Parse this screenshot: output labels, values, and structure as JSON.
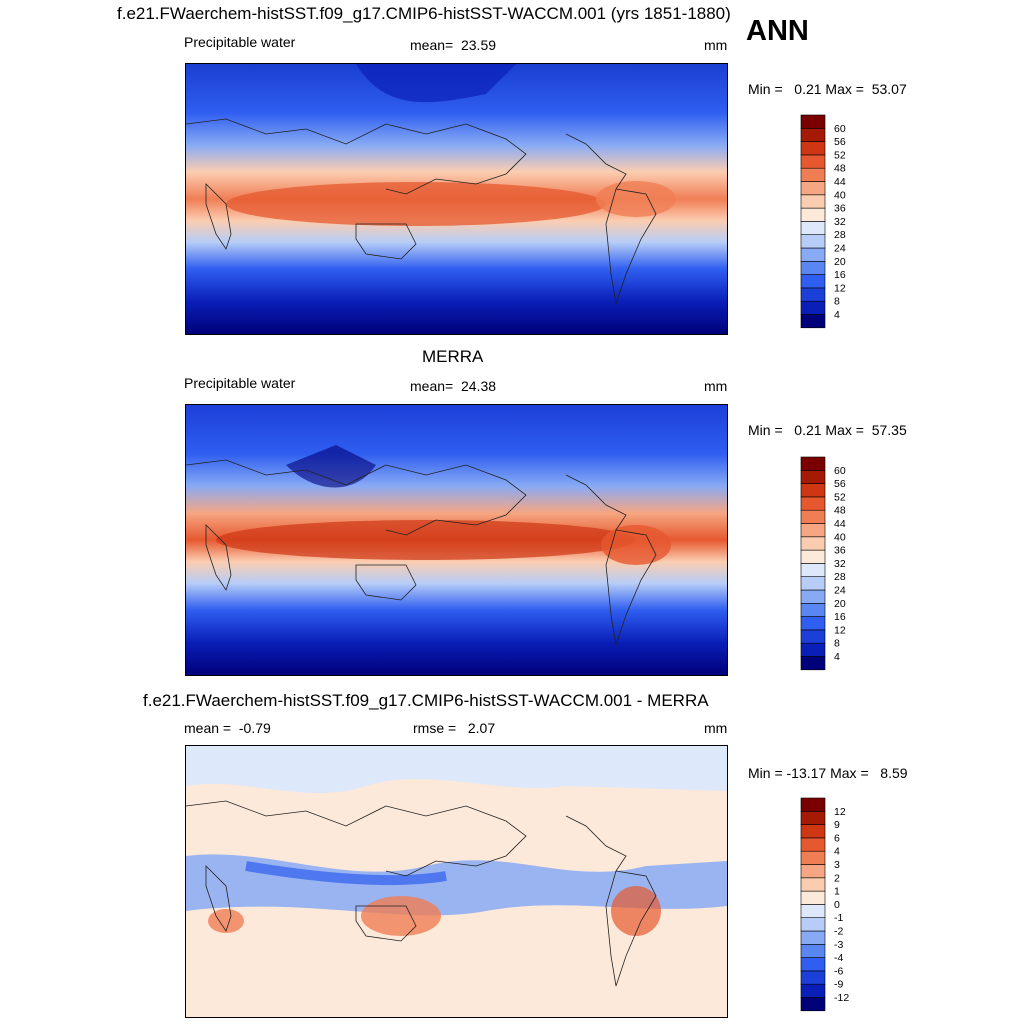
{
  "season": "ANN",
  "chart_data": [
    {
      "type": "heatmap",
      "title": "f.e21.FWaerchem-histSST.f09_g17.CMIP6-histSST-WACCM.001 (yrs 1851-1880)",
      "variable": "Precipitable water",
      "mean_label": "mean=",
      "mean": "23.59",
      "units": "mm",
      "stats": "Min =   0.21 Max =  53.07",
      "min": 0.21,
      "max": 53.07,
      "colorbar_levels": [
        "4",
        "8",
        "12",
        "16",
        "20",
        "24",
        "28",
        "32",
        "36",
        "40",
        "44",
        "48",
        "52",
        "56",
        "60"
      ],
      "colors": [
        "#00007a",
        "#0a1fb8",
        "#1c3fd8",
        "#2f5ef0",
        "#5a86f2",
        "#88aaf5",
        "#b7cdf7",
        "#dde8fb",
        "#fde9da",
        "#fbcdb0",
        "#f6a682",
        "#f07e55",
        "#e6582f",
        "#cf3614",
        "#a51a05",
        "#7a0000"
      ]
    },
    {
      "type": "heatmap",
      "title": "MERRA",
      "variable": "Precipitable water",
      "mean_label": "mean=",
      "mean": "24.38",
      "units": "mm",
      "stats": "Min =   0.21 Max =  57.35",
      "min": 0.21,
      "max": 57.35,
      "colorbar_levels": [
        "4",
        "8",
        "12",
        "16",
        "20",
        "24",
        "28",
        "32",
        "36",
        "40",
        "44",
        "48",
        "52",
        "56",
        "60"
      ],
      "colors": [
        "#00007a",
        "#0a1fb8",
        "#1c3fd8",
        "#2f5ef0",
        "#5a86f2",
        "#88aaf5",
        "#b7cdf7",
        "#dde8fb",
        "#fde9da",
        "#fbcdb0",
        "#f6a682",
        "#f07e55",
        "#e6582f",
        "#cf3614",
        "#a51a05",
        "#7a0000"
      ]
    },
    {
      "type": "heatmap",
      "title": "f.e21.FWaerchem-histSST.f09_g17.CMIP6-histSST-WACCM.001 - MERRA",
      "mean_label": "mean =",
      "mean": "-0.79",
      "rmse_label": "rmse =",
      "rmse": "2.07",
      "units": "mm",
      "stats": "Min = -13.17 Max =   8.59",
      "min": -13.17,
      "max": 8.59,
      "colorbar_levels": [
        "-12",
        "-9",
        "-6",
        "-4",
        "-3",
        "-2",
        "-1",
        "0",
        "1",
        "2",
        "3",
        "4",
        "6",
        "9",
        "12"
      ],
      "colors": [
        "#00007a",
        "#0a1fb8",
        "#1c3fd8",
        "#2f5ef0",
        "#5a86f2",
        "#88aaf5",
        "#b7cdf7",
        "#dde8fb",
        "#fde9da",
        "#fbcdb0",
        "#f6a682",
        "#f07e55",
        "#e6582f",
        "#cf3614",
        "#a51a05",
        "#7a0000"
      ]
    }
  ]
}
